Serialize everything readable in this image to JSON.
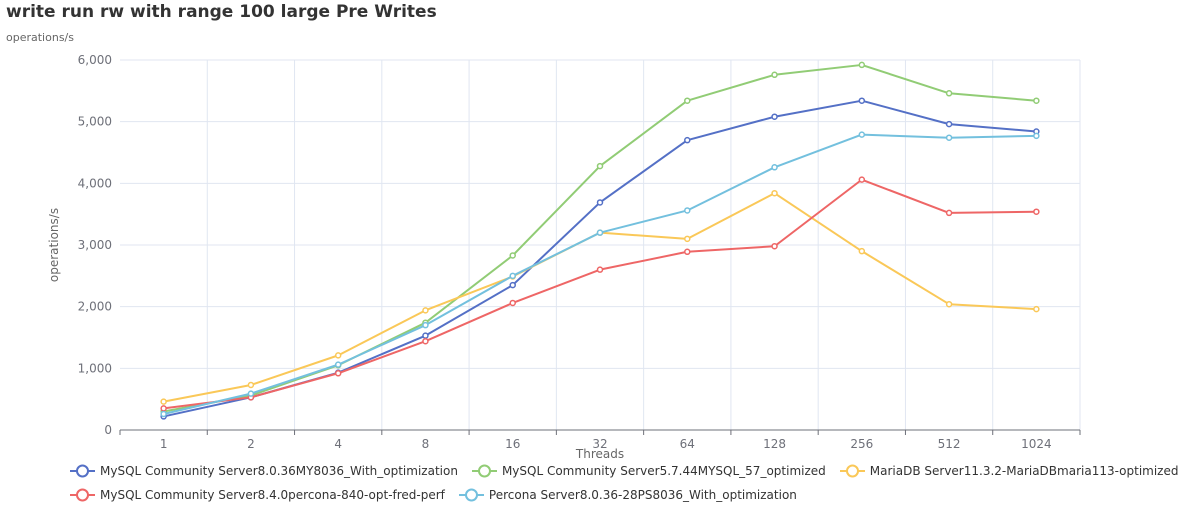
{
  "chart_data": {
    "type": "line",
    "title": "write run rw with range 100 large Pre Writes",
    "subtitle": "operations/s",
    "xlabel": "Threads",
    "ylabel": "operations/s",
    "categories": [
      "1",
      "2",
      "4",
      "8",
      "16",
      "32",
      "64",
      "128",
      "256",
      "512",
      "1024"
    ],
    "ylim": [
      0,
      6000
    ],
    "yticks": [
      0,
      1000,
      2000,
      3000,
      4000,
      5000,
      6000
    ],
    "ytick_labels": [
      "0",
      "1,000",
      "2,000",
      "3,000",
      "4,000",
      "5,000",
      "6,000"
    ],
    "grid": true,
    "legend_position": "bottom",
    "series": [
      {
        "name": "MySQL Community Server8.0.36MY8036_With_optimization",
        "color": "#5470c6",
        "values": [
          220,
          530,
          930,
          1530,
          2350,
          3690,
          4700,
          5080,
          5340,
          4960,
          4840
        ]
      },
      {
        "name": "MySQL Community Server5.7.44MYSQL_57_optimized",
        "color": "#91cc75",
        "values": [
          300,
          560,
          1050,
          1740,
          2830,
          4280,
          5340,
          5760,
          5920,
          5460,
          5340
        ]
      },
      {
        "name": "MariaDB Server11.3.2-MariaDBmaria113-optimized",
        "color": "#fac858",
        "values": [
          460,
          730,
          1210,
          1940,
          2490,
          3200,
          3100,
          3840,
          2900,
          2040,
          1960
        ]
      },
      {
        "name": "MySQL Community Server8.4.0percona-840-opt-fred-perf",
        "color": "#ee6666",
        "values": [
          350,
          530,
          920,
          1440,
          2060,
          2600,
          2890,
          2980,
          4060,
          3520,
          3540
        ]
      },
      {
        "name": "Percona Server8.0.36-28PS8036_With_optimization",
        "color": "#73c0de",
        "values": [
          260,
          590,
          1060,
          1700,
          2500,
          3200,
          3560,
          4260,
          4790,
          4740,
          4770
        ]
      }
    ]
  }
}
